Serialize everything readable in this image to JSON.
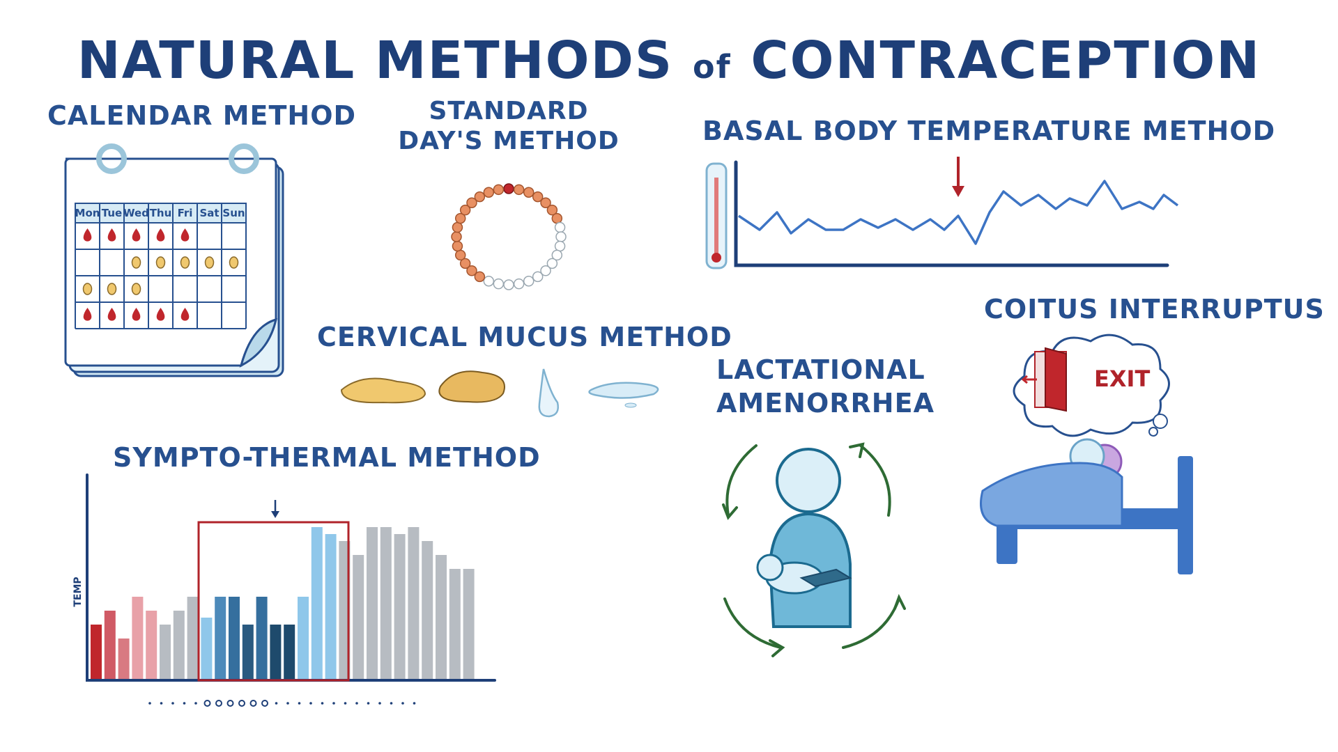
{
  "title": {
    "main": "NATURAL METHODS",
    "of": "of",
    "end": "CONTRACEPTION"
  },
  "headings": {
    "calendar": "CALENDAR METHOD",
    "standard": "STANDARD DAY'S METHOD",
    "bbt": "BASAL BODY TEMPERATURE METHOD",
    "cervical": "CERVICAL MUCUS METHOD",
    "lactational": "LACTATIONAL AMENORRHEA",
    "coitus": "COITUS INTERRUPTUS",
    "sympto": "SYMPTO-THERMAL METHOD"
  },
  "calendar": {
    "days": [
      "Mon",
      "Tue",
      "Wed",
      "Thu",
      "Fri",
      "Sat",
      "Sun"
    ]
  },
  "sympto": {
    "axis_label": "TEMP"
  },
  "coitus": {
    "sign": "EXIT"
  },
  "colors": {
    "ink": "#1e3f78",
    "heading": "#27508f",
    "blood": "#c0262c",
    "egg": "#f0c86e",
    "bead": "#e89063",
    "chart_line": "#3d74c4",
    "arrow_green": "#2e6b34"
  }
}
